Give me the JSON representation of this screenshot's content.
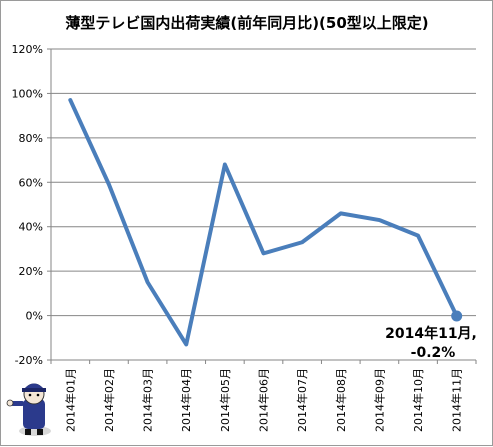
{
  "chart_data": {
    "type": "line",
    "title": "薄型テレビ国内出荷実績(前年同月比)(50型以上限定)",
    "xlabel": "",
    "ylabel": "",
    "categories": [
      "2014年01月",
      "2014年02月",
      "2014年03月",
      "2014年04月",
      "2014年05月",
      "2014年06月",
      "2014年07月",
      "2014年08月",
      "2014年09月",
      "2014年10月",
      "2014年11月"
    ],
    "values": [
      97,
      59,
      15,
      -13,
      68,
      28,
      33,
      46,
      43,
      36,
      -0.2
    ],
    "ylim": [
      -20,
      120
    ],
    "yticks": [
      "-20%",
      "0%",
      "20%",
      "40%",
      "60%",
      "80%",
      "100%",
      "120%"
    ],
    "grid": true,
    "legend": "none",
    "annotation": {
      "line1": "2014年11月,",
      "line2": "-0.2%"
    },
    "colors": {
      "line": "#4a7ebb",
      "grid": "#868686",
      "axis": "#868686"
    }
  }
}
